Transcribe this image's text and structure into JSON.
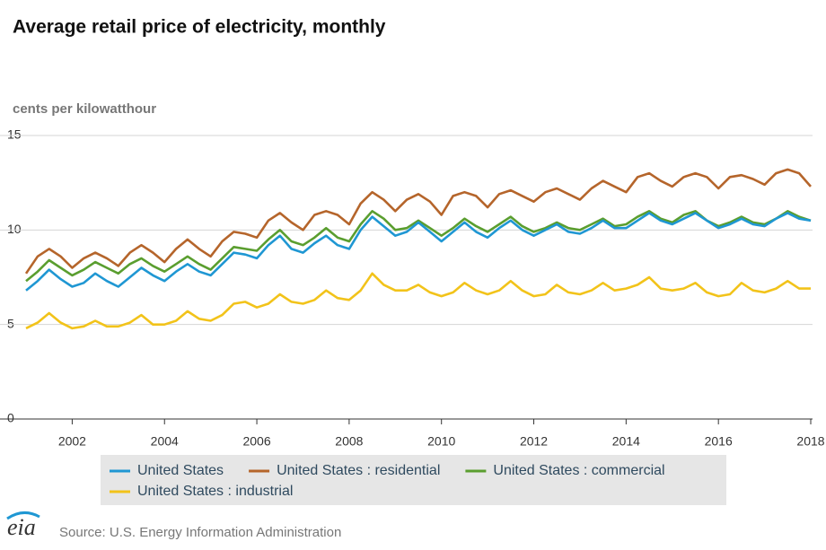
{
  "chart_data": {
    "type": "line",
    "title": "Average retail price of electricity, monthly",
    "y_label": "cents per kilowatthour",
    "source": "Source: U.S. Energy Information Administration",
    "logo": "eia",
    "x": [
      2001,
      2001.25,
      2001.5,
      2001.75,
      2002,
      2002.25,
      2002.5,
      2002.75,
      2003,
      2003.25,
      2003.5,
      2003.75,
      2004,
      2004.25,
      2004.5,
      2004.75,
      2005,
      2005.25,
      2005.5,
      2005.75,
      2006,
      2006.25,
      2006.5,
      2006.75,
      2007,
      2007.25,
      2007.5,
      2007.75,
      2008,
      2008.25,
      2008.5,
      2008.75,
      2009,
      2009.25,
      2009.5,
      2009.75,
      2010,
      2010.25,
      2010.5,
      2010.75,
      2011,
      2011.25,
      2011.5,
      2011.75,
      2012,
      2012.25,
      2012.5,
      2012.75,
      2013,
      2013.25,
      2013.5,
      2013.75,
      2014,
      2014.25,
      2014.5,
      2014.75,
      2015,
      2015.25,
      2015.5,
      2015.75,
      2016,
      2016.25,
      2016.5,
      2016.75,
      2017,
      2017.25,
      2017.5,
      2017.75,
      2018
    ],
    "xlim": [
      2001,
      2018
    ],
    "xticks": [
      2002,
      2004,
      2006,
      2008,
      2010,
      2012,
      2014,
      2016,
      2018
    ],
    "ylim": [
      0,
      15
    ],
    "yticks": [
      0,
      5,
      10,
      15
    ],
    "grid": true,
    "series": [
      {
        "name": "United States",
        "color": "#1f97d3",
        "values": [
          6.8,
          7.3,
          7.9,
          7.4,
          7.0,
          7.2,
          7.7,
          7.3,
          7.0,
          7.5,
          8.0,
          7.6,
          7.3,
          7.8,
          8.2,
          7.8,
          7.6,
          8.2,
          8.8,
          8.7,
          8.5,
          9.2,
          9.7,
          9.0,
          8.8,
          9.3,
          9.7,
          9.2,
          9.0,
          10.0,
          10.7,
          10.2,
          9.7,
          9.9,
          10.4,
          9.9,
          9.4,
          9.9,
          10.4,
          9.9,
          9.6,
          10.1,
          10.5,
          10.0,
          9.7,
          10.0,
          10.3,
          9.9,
          9.8,
          10.1,
          10.5,
          10.1,
          10.1,
          10.5,
          10.9,
          10.5,
          10.3,
          10.6,
          10.9,
          10.5,
          10.1,
          10.3,
          10.6,
          10.3,
          10.2,
          10.6,
          10.9,
          10.6,
          10.5
        ]
      },
      {
        "name": "United States : residential",
        "color": "#b5652b",
        "values": [
          7.7,
          8.6,
          9.0,
          8.6,
          8.0,
          8.5,
          8.8,
          8.5,
          8.1,
          8.8,
          9.2,
          8.8,
          8.3,
          9.0,
          9.5,
          9.0,
          8.6,
          9.4,
          9.9,
          9.8,
          9.6,
          10.5,
          10.9,
          10.4,
          10.0,
          10.8,
          11.0,
          10.8,
          10.3,
          11.4,
          12.0,
          11.6,
          11.0,
          11.6,
          11.9,
          11.5,
          10.8,
          11.8,
          12.0,
          11.8,
          11.2,
          11.9,
          12.1,
          11.8,
          11.5,
          12.0,
          12.2,
          11.9,
          11.6,
          12.2,
          12.6,
          12.3,
          12.0,
          12.8,
          13.0,
          12.6,
          12.3,
          12.8,
          13.0,
          12.8,
          12.2,
          12.8,
          12.9,
          12.7,
          12.4,
          13.0,
          13.2,
          13.0,
          12.3
        ]
      },
      {
        "name": "United States : commercial",
        "color": "#5a9e2f",
        "values": [
          7.3,
          7.8,
          8.4,
          8.0,
          7.6,
          7.9,
          8.3,
          8.0,
          7.7,
          8.2,
          8.5,
          8.1,
          7.8,
          8.2,
          8.6,
          8.2,
          7.9,
          8.5,
          9.1,
          9.0,
          8.9,
          9.5,
          10.0,
          9.4,
          9.2,
          9.6,
          10.1,
          9.6,
          9.4,
          10.3,
          11.0,
          10.6,
          10.0,
          10.1,
          10.5,
          10.1,
          9.7,
          10.1,
          10.6,
          10.2,
          9.9,
          10.3,
          10.7,
          10.2,
          9.9,
          10.1,
          10.4,
          10.1,
          10.0,
          10.3,
          10.6,
          10.2,
          10.3,
          10.7,
          11.0,
          10.6,
          10.4,
          10.8,
          11.0,
          10.5,
          10.2,
          10.4,
          10.7,
          10.4,
          10.3,
          10.6,
          11.0,
          10.7,
          10.5
        ]
      },
      {
        "name": "United States : industrial",
        "color": "#f2c31a",
        "values": [
          4.8,
          5.1,
          5.6,
          5.1,
          4.8,
          4.9,
          5.2,
          4.9,
          4.9,
          5.1,
          5.5,
          5.0,
          5.0,
          5.2,
          5.7,
          5.3,
          5.2,
          5.5,
          6.1,
          6.2,
          5.9,
          6.1,
          6.6,
          6.2,
          6.1,
          6.3,
          6.8,
          6.4,
          6.3,
          6.8,
          7.7,
          7.1,
          6.8,
          6.8,
          7.1,
          6.7,
          6.5,
          6.7,
          7.2,
          6.8,
          6.6,
          6.8,
          7.3,
          6.8,
          6.5,
          6.6,
          7.1,
          6.7,
          6.6,
          6.8,
          7.2,
          6.8,
          6.9,
          7.1,
          7.5,
          6.9,
          6.8,
          6.9,
          7.2,
          6.7,
          6.5,
          6.6,
          7.2,
          6.8,
          6.7,
          6.9,
          7.3,
          6.9,
          6.9
        ]
      }
    ]
  }
}
